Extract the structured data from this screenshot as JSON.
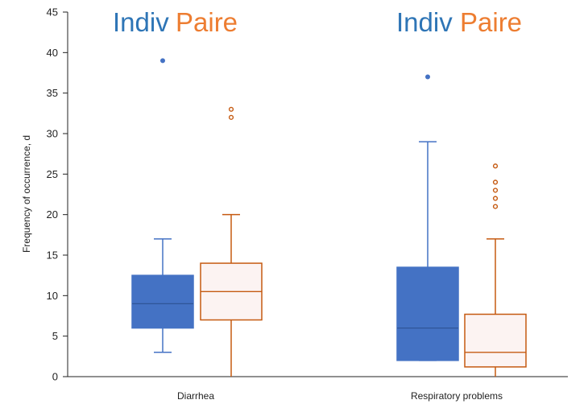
{
  "chart_data": {
    "type": "box",
    "ylabel": "Frequency of occurrence, d",
    "xlabel": "",
    "ylim": [
      0,
      45
    ],
    "yticks": [
      "0",
      "5",
      "10",
      "15",
      "20",
      "25",
      "30",
      "35",
      "40",
      "45"
    ],
    "categories": [
      "Diarrhea",
      "Respiratory problems"
    ],
    "legend_groups": [
      {
        "category": "Diarrhea",
        "labels": [
          "Indiv",
          "Paire"
        ]
      },
      {
        "category": "Respiratory problems",
        "labels": [
          "Indiv",
          "Paire"
        ]
      }
    ],
    "series": [
      {
        "name": "Indiv",
        "color": "#4472C4",
        "fill": "#4472C4",
        "boxes": [
          {
            "category": "Diarrhea",
            "whisker_low": 3,
            "q1": 6,
            "median": 9,
            "q3": 12.5,
            "whisker_high": 17,
            "outliers": [
              39
            ]
          },
          {
            "category": "Respiratory problems",
            "whisker_low": 2,
            "q1": 2,
            "median": 6,
            "q3": 13.5,
            "whisker_high": 29,
            "outliers": [
              37
            ]
          }
        ]
      },
      {
        "name": "Paire",
        "color": "#C55A11",
        "fill": "#FCF3F2",
        "boxes": [
          {
            "category": "Diarrhea",
            "whisker_low": 0,
            "q1": 7,
            "median": 10.5,
            "q3": 14,
            "whisker_high": 20,
            "outliers": [
              32,
              33
            ]
          },
          {
            "category": "Respiratory problems",
            "whisker_low": 0,
            "q1": 1.2,
            "median": 3,
            "q3": 7.7,
            "whisker_high": 17,
            "outliers": [
              21,
              22,
              23,
              24,
              26
            ]
          }
        ]
      }
    ],
    "legend_colors": {
      "Indiv": "#2E75B6",
      "Paire": "#ED7D31"
    },
    "grid": false
  }
}
